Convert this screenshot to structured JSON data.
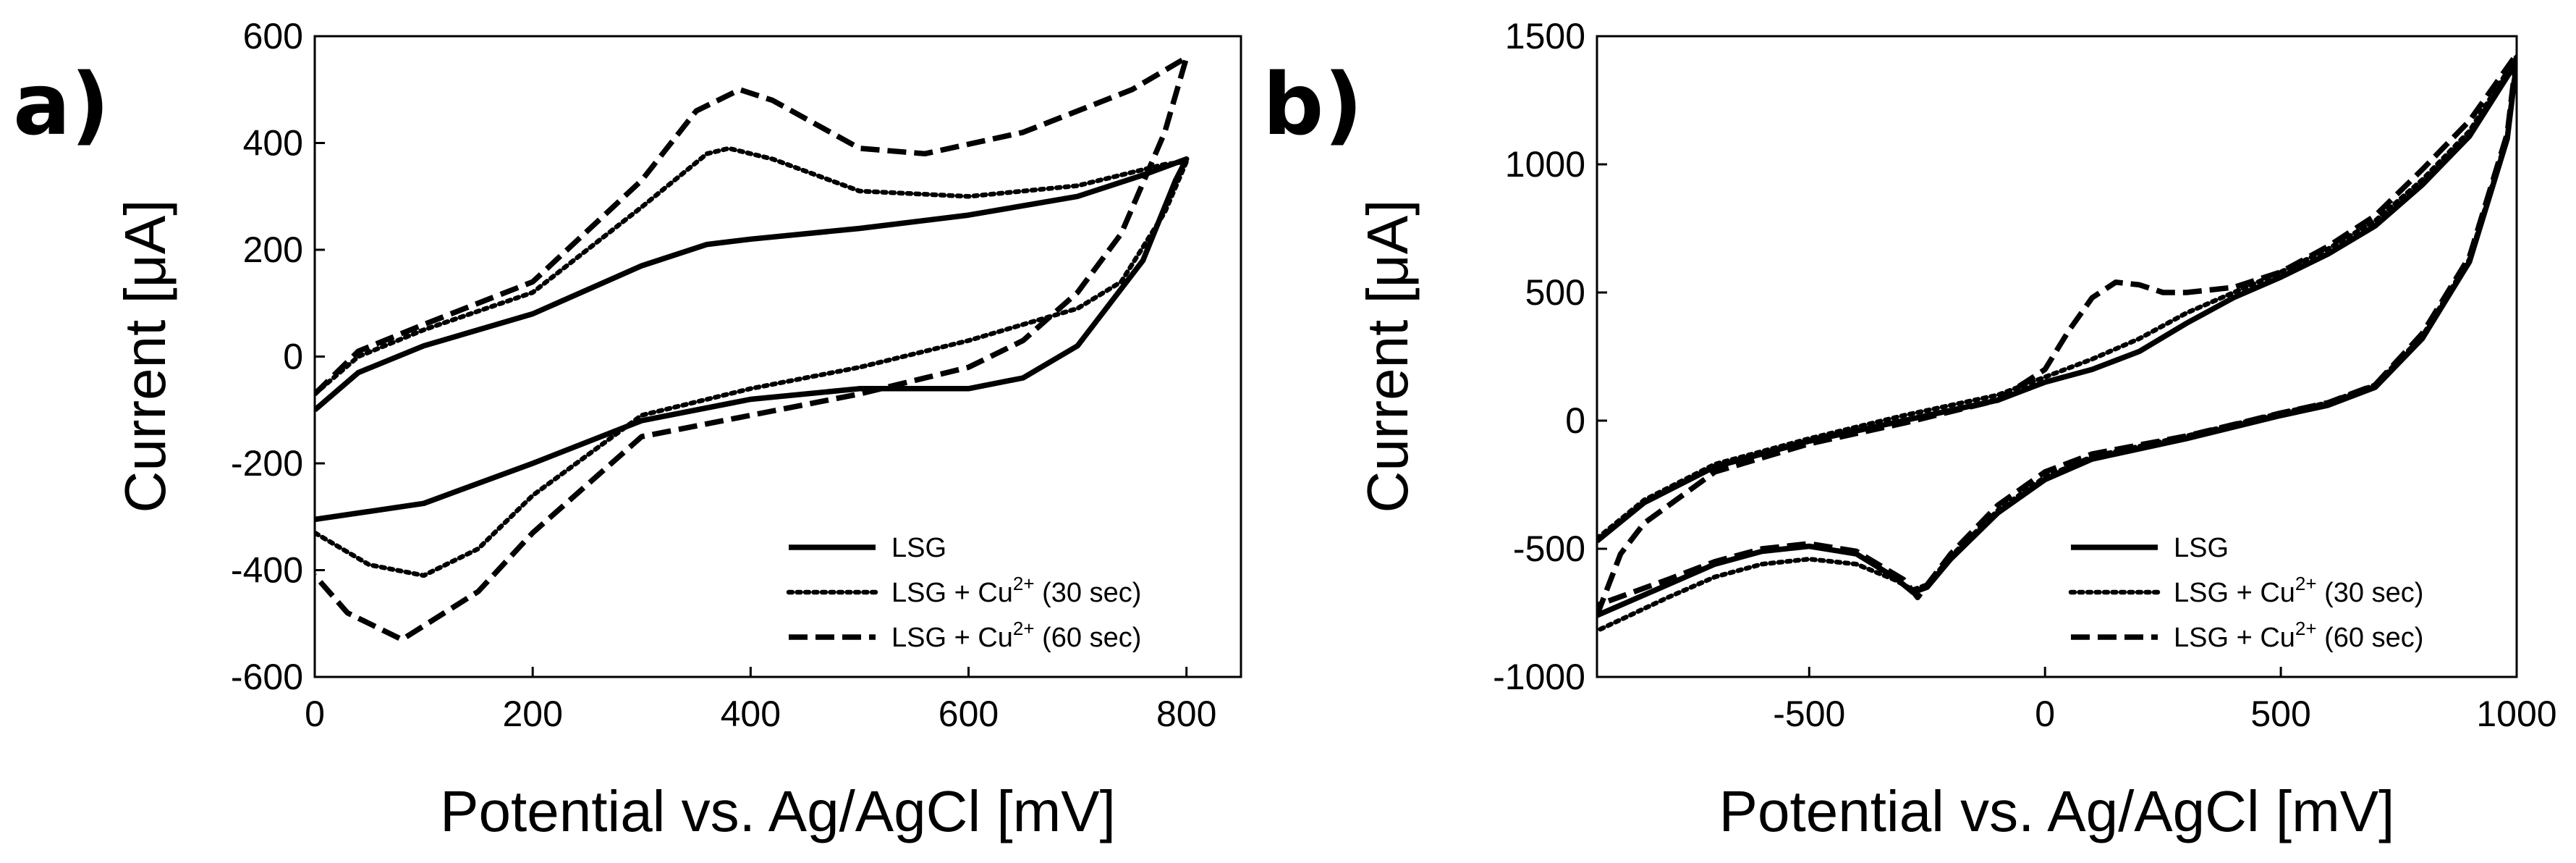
{
  "chart_data": [
    {
      "type": "line",
      "panel_label": "a)",
      "title": "",
      "xlabel": "Potential vs. Ag/AgCl [mV]",
      "ylabel": "Current [μA]",
      "xlim": [
        0,
        850
      ],
      "ylim": [
        -600,
        600
      ],
      "xticks": [
        0,
        200,
        400,
        600,
        800
      ],
      "yticks": [
        -600,
        -400,
        -200,
        0,
        200,
        400,
        600
      ],
      "grid": false,
      "legend_position": "bottom-right",
      "series": [
        {
          "name": "LSG",
          "legend": {
            "text": "LSG",
            "sup": "",
            "suffix": ""
          },
          "style": "solid",
          "x": [
            0,
            40,
            100,
            200,
            300,
            360,
            400,
            500,
            600,
            700,
            760,
            800,
            790,
            760,
            700,
            650,
            600,
            500,
            400,
            300,
            200,
            100,
            50,
            0
          ],
          "y": [
            -100,
            -30,
            20,
            80,
            170,
            210,
            220,
            240,
            265,
            300,
            340,
            370,
            330,
            180,
            20,
            -40,
            -60,
            -60,
            -80,
            -120,
            -200,
            -275,
            -290,
            -305
          ]
        },
        {
          "name": "LSG + Cu2+ (30 sec)",
          "legend": {
            "text": "LSG + Cu",
            "sup": "2+",
            "suffix": " (30 sec)"
          },
          "style": "dotted",
          "x": [
            0,
            40,
            100,
            200,
            300,
            360,
            380,
            420,
            500,
            600,
            700,
            780,
            800,
            780,
            740,
            700,
            650,
            600,
            500,
            400,
            300,
            200,
            150,
            100,
            50,
            0
          ],
          "y": [
            -70,
            0,
            50,
            120,
            280,
            380,
            390,
            370,
            310,
            300,
            320,
            360,
            365,
            270,
            140,
            90,
            60,
            30,
            -20,
            -60,
            -110,
            -260,
            -360,
            -410,
            -390,
            -330
          ]
        },
        {
          "name": "LSG + Cu2+ (60 sec)",
          "legend": {
            "text": "LSG + Cu",
            "sup": "2+",
            "suffix": " (60 sec)"
          },
          "style": "dashed",
          "x": [
            0,
            40,
            100,
            200,
            300,
            350,
            390,
            420,
            500,
            560,
            650,
            750,
            800,
            780,
            740,
            700,
            650,
            600,
            500,
            400,
            300,
            200,
            150,
            80,
            30,
            0
          ],
          "y": [
            -70,
            10,
            60,
            140,
            330,
            460,
            500,
            480,
            390,
            380,
            420,
            500,
            560,
            420,
            230,
            120,
            30,
            -20,
            -70,
            -110,
            -150,
            -330,
            -440,
            -530,
            -480,
            -410
          ]
        }
      ]
    },
    {
      "type": "line",
      "panel_label": "b)",
      "title": "",
      "xlabel": "Potential vs. Ag/AgCl [mV]",
      "ylabel": "Current [μA]",
      "xlim": [
        -950,
        1000
      ],
      "ylim": [
        -1000,
        1500
      ],
      "xticks": [
        -500,
        0,
        500,
        1000
      ],
      "yticks": [
        -1000,
        -500,
        0,
        500,
        1000,
        1500
      ],
      "grid": false,
      "legend_position": "bottom-right",
      "series": [
        {
          "name": "LSG",
          "legend": {
            "text": "LSG",
            "sup": "",
            "suffix": ""
          },
          "style": "solid",
          "x": [
            -950,
            -850,
            -700,
            -500,
            -300,
            -100,
            0,
            100,
            200,
            300,
            400,
            500,
            600,
            700,
            800,
            900,
            1000,
            980,
            900,
            800,
            700,
            600,
            500,
            300,
            100,
            0,
            -100,
            -200,
            -250,
            -280,
            -320,
            -400,
            -500,
            -600,
            -700,
            -800,
            -950
          ],
          "y": [
            -470,
            -320,
            -180,
            -80,
            0,
            80,
            150,
            200,
            270,
            380,
            480,
            560,
            650,
            760,
            920,
            1110,
            1400,
            1100,
            620,
            320,
            130,
            60,
            20,
            -70,
            -150,
            -230,
            -360,
            -540,
            -650,
            -670,
            -610,
            -520,
            -490,
            -510,
            -560,
            -640,
            -760
          ]
        },
        {
          "name": "LSG + Cu2+ (30 sec)",
          "legend": {
            "text": "LSG + Cu",
            "sup": "2+",
            "suffix": " (30 sec)"
          },
          "style": "dotted",
          "x": [
            -950,
            -850,
            -700,
            -500,
            -300,
            -100,
            0,
            100,
            200,
            300,
            400,
            500,
            600,
            700,
            800,
            900,
            1000,
            980,
            900,
            800,
            700,
            600,
            500,
            300,
            100,
            0,
            -100,
            -200,
            -250,
            -280,
            -320,
            -400,
            -500,
            -600,
            -700,
            -800,
            -950
          ],
          "y": [
            -460,
            -310,
            -170,
            -70,
            20,
            100,
            170,
            240,
            320,
            420,
            500,
            580,
            670,
            780,
            940,
            1130,
            1420,
            1110,
            630,
            330,
            140,
            70,
            30,
            -60,
            -140,
            -220,
            -350,
            -530,
            -640,
            -660,
            -620,
            -560,
            -540,
            -560,
            -610,
            -690,
            -820
          ]
        },
        {
          "name": "LSG + Cu2+ (60 sec)",
          "legend": {
            "text": "LSG + Cu",
            "sup": "2+",
            "suffix": " (60 sec)"
          },
          "style": "dashed",
          "x": [
            -950,
            -900,
            -850,
            -700,
            -500,
            -300,
            -100,
            0,
            50,
            100,
            150,
            200,
            250,
            300,
            400,
            500,
            600,
            700,
            800,
            900,
            1000,
            980,
            900,
            800,
            700,
            600,
            500,
            300,
            100,
            0,
            -100,
            -200,
            -250,
            -270,
            -300,
            -400,
            -500,
            -600,
            -700,
            -800,
            -950
          ],
          "y": [
            -760,
            -520,
            -400,
            -200,
            -90,
            -10,
            80,
            200,
            350,
            480,
            540,
            530,
            500,
            500,
            520,
            580,
            680,
            800,
            980,
            1170,
            1430,
            1120,
            640,
            340,
            140,
            70,
            30,
            -60,
            -130,
            -200,
            -330,
            -520,
            -640,
            -690,
            -620,
            -510,
            -480,
            -500,
            -550,
            -620,
            -720
          ]
        }
      ]
    }
  ]
}
